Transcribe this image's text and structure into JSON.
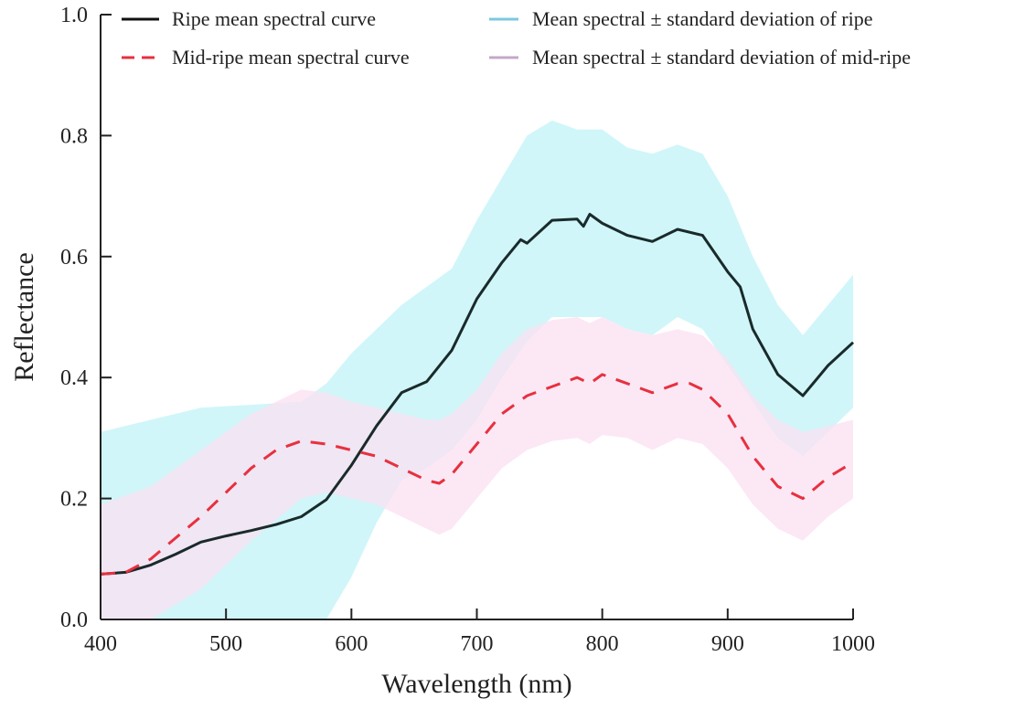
{
  "chart_data": {
    "type": "line",
    "title": "",
    "xlabel": "Wavelength (nm)",
    "ylabel": "Reflectance",
    "xlim": [
      400,
      1000
    ],
    "ylim": [
      0.0,
      1.0
    ],
    "xticks": [
      "400",
      "500",
      "600",
      "700",
      "800",
      "900",
      "1000"
    ],
    "xtick_values": [
      400,
      500,
      600,
      700,
      800,
      900,
      1000
    ],
    "yticks": [
      "0.0",
      "0.2",
      "0.4",
      "0.6",
      "0.8",
      "1.0"
    ],
    "ytick_values": [
      0.0,
      0.2,
      0.4,
      0.6,
      0.8,
      1.0
    ],
    "grid": false,
    "legend_position": "top",
    "legend": [
      {
        "label": "Ripe mean spectral curve",
        "style": "solid",
        "color": "#111111"
      },
      {
        "label": "Mid-ripe mean spectral curve",
        "style": "dashed",
        "color": "#e8303f"
      },
      {
        "label": "Mean spectral ± standard deviation of ripe",
        "style": "band",
        "color": "#7ec8e0"
      },
      {
        "label": "Mean spectral ± standard deviation of mid-ripe",
        "style": "band",
        "color": "#c4a8c8"
      }
    ],
    "series": [
      {
        "name": "Ripe mean spectral curve",
        "color": "#1a2a2a",
        "dash": false,
        "x": [
          400,
          420,
          440,
          460,
          480,
          500,
          520,
          540,
          560,
          580,
          600,
          620,
          640,
          660,
          680,
          700,
          720,
          735,
          740,
          760,
          780,
          785,
          790,
          800,
          820,
          840,
          860,
          880,
          900,
          910,
          920,
          940,
          960,
          980,
          1000
        ],
        "y": [
          0.075,
          0.078,
          0.09,
          0.108,
          0.128,
          0.138,
          0.147,
          0.157,
          0.17,
          0.198,
          0.255,
          0.32,
          0.375,
          0.393,
          0.445,
          0.53,
          0.59,
          0.628,
          0.622,
          0.66,
          0.662,
          0.65,
          0.67,
          0.655,
          0.635,
          0.625,
          0.645,
          0.635,
          0.575,
          0.55,
          0.48,
          0.405,
          0.37,
          0.42,
          0.458
        ]
      },
      {
        "name": "Mid-ripe mean spectral curve",
        "color": "#e8303f",
        "dash": true,
        "x": [
          400,
          420,
          440,
          460,
          480,
          500,
          520,
          540,
          560,
          580,
          600,
          620,
          640,
          660,
          670,
          680,
          700,
          720,
          740,
          760,
          780,
          790,
          800,
          820,
          840,
          860,
          870,
          880,
          900,
          920,
          940,
          960,
          980,
          1000
        ],
        "y": [
          0.075,
          0.078,
          0.1,
          0.135,
          0.17,
          0.21,
          0.25,
          0.28,
          0.295,
          0.29,
          0.28,
          0.27,
          0.25,
          0.23,
          0.225,
          0.24,
          0.29,
          0.34,
          0.37,
          0.385,
          0.4,
          0.39,
          0.405,
          0.39,
          0.375,
          0.39,
          0.39,
          0.38,
          0.34,
          0.27,
          0.22,
          0.2,
          0.235,
          0.26
        ]
      }
    ],
    "bands": [
      {
        "name": "Mean spectral ± standard deviation of ripe",
        "color": "#c8f4f8",
        "x": [
          400,
          440,
          480,
          520,
          560,
          580,
          600,
          620,
          640,
          660,
          680,
          700,
          720,
          740,
          760,
          780,
          800,
          820,
          840,
          860,
          880,
          900,
          920,
          940,
          960,
          980,
          1000
        ],
        "upper": [
          0.31,
          0.33,
          0.35,
          0.355,
          0.36,
          0.39,
          0.44,
          0.48,
          0.52,
          0.55,
          0.58,
          0.66,
          0.73,
          0.8,
          0.825,
          0.81,
          0.81,
          0.78,
          0.77,
          0.785,
          0.77,
          0.7,
          0.6,
          0.52,
          0.47,
          0.52,
          0.57
        ],
        "lower": [
          0.0,
          0.0,
          0.0,
          0.0,
          0.0,
          0.0,
          0.07,
          0.16,
          0.23,
          0.25,
          0.28,
          0.33,
          0.4,
          0.46,
          0.5,
          0.5,
          0.5,
          0.48,
          0.47,
          0.5,
          0.48,
          0.42,
          0.36,
          0.3,
          0.27,
          0.31,
          0.35
        ]
      },
      {
        "name": "Mean spectral ± standard deviation of mid-ripe",
        "color": "#fbe0f2",
        "x": [
          400,
          440,
          480,
          520,
          560,
          580,
          600,
          620,
          640,
          660,
          670,
          680,
          700,
          720,
          740,
          760,
          780,
          790,
          800,
          820,
          840,
          860,
          880,
          900,
          920,
          940,
          960,
          980,
          1000
        ],
        "upper": [
          0.19,
          0.22,
          0.28,
          0.34,
          0.38,
          0.375,
          0.36,
          0.35,
          0.34,
          0.33,
          0.33,
          0.34,
          0.38,
          0.44,
          0.48,
          0.495,
          0.5,
          0.49,
          0.5,
          0.48,
          0.47,
          0.48,
          0.47,
          0.43,
          0.37,
          0.33,
          0.31,
          0.32,
          0.33
        ],
        "lower": [
          0.0,
          0.0,
          0.05,
          0.13,
          0.2,
          0.21,
          0.2,
          0.19,
          0.17,
          0.15,
          0.14,
          0.15,
          0.2,
          0.25,
          0.28,
          0.295,
          0.3,
          0.29,
          0.305,
          0.3,
          0.28,
          0.3,
          0.29,
          0.25,
          0.19,
          0.15,
          0.13,
          0.17,
          0.2
        ]
      }
    ]
  }
}
